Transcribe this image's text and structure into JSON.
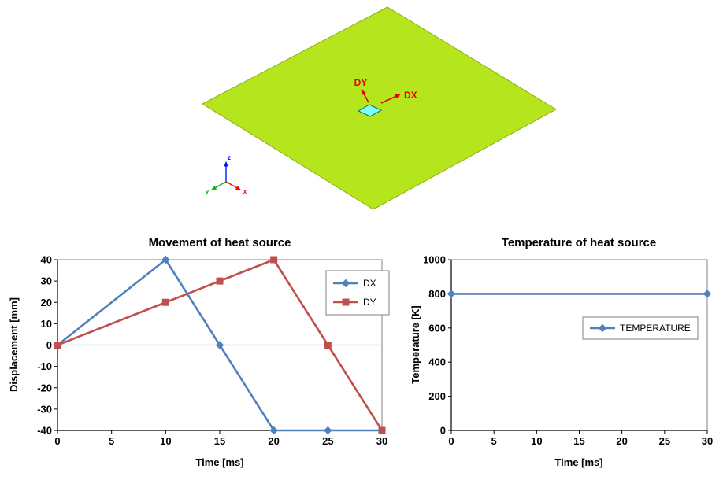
{
  "scene": {
    "plate_color": "#b5e61d",
    "heat_source_color": "#80ffff",
    "annotation_color": "#e60000",
    "labels": {
      "dx": "DX",
      "dy": "DY"
    },
    "triad": {
      "x": "x",
      "y": "y",
      "z": "z",
      "x_color": "#ff0000",
      "y_color": "#00b818",
      "z_color": "#0017ff"
    }
  },
  "chart_data": [
    {
      "type": "line",
      "title": "Movement of heat source",
      "xlabel": "Time [ms]",
      "ylabel": "Displacement [mm]",
      "xlim": [
        0,
        30
      ],
      "ylim": [
        -40,
        40
      ],
      "xticks": [
        0,
        5,
        10,
        15,
        20,
        25,
        30
      ],
      "yticks": [
        40,
        30,
        20,
        10,
        0,
        -10,
        -20,
        -30,
        -40
      ],
      "grid": false,
      "legend": true,
      "legend_position": "right-inside",
      "series": [
        {
          "name": "DX",
          "color": "#4f81bd",
          "marker": "diamond",
          "x": [
            0,
            10,
            15,
            20,
            25,
            30
          ],
          "y": [
            0,
            40,
            0,
            -40,
            -40,
            -40
          ]
        },
        {
          "name": "DY",
          "color": "#c0504d",
          "marker": "square",
          "x": [
            0,
            10,
            15,
            20,
            25,
            30
          ],
          "y": [
            0,
            20,
            30,
            40,
            0,
            -40
          ]
        }
      ]
    },
    {
      "type": "line",
      "title": "Temperature of heat source",
      "xlabel": "Time [ms]",
      "ylabel": "Temperature [K]",
      "xlim": [
        0,
        30
      ],
      "ylim": [
        0,
        1000
      ],
      "xticks": [
        0,
        5,
        10,
        15,
        20,
        25,
        30
      ],
      "yticks": [
        1000,
        800,
        600,
        400,
        200,
        0
      ],
      "grid": false,
      "legend": true,
      "legend_position": "right-inside",
      "series": [
        {
          "name": "TEMPERATURE",
          "color": "#4f81bd",
          "marker": "diamond",
          "x": [
            0,
            30
          ],
          "y": [
            800,
            800
          ]
        }
      ]
    }
  ]
}
